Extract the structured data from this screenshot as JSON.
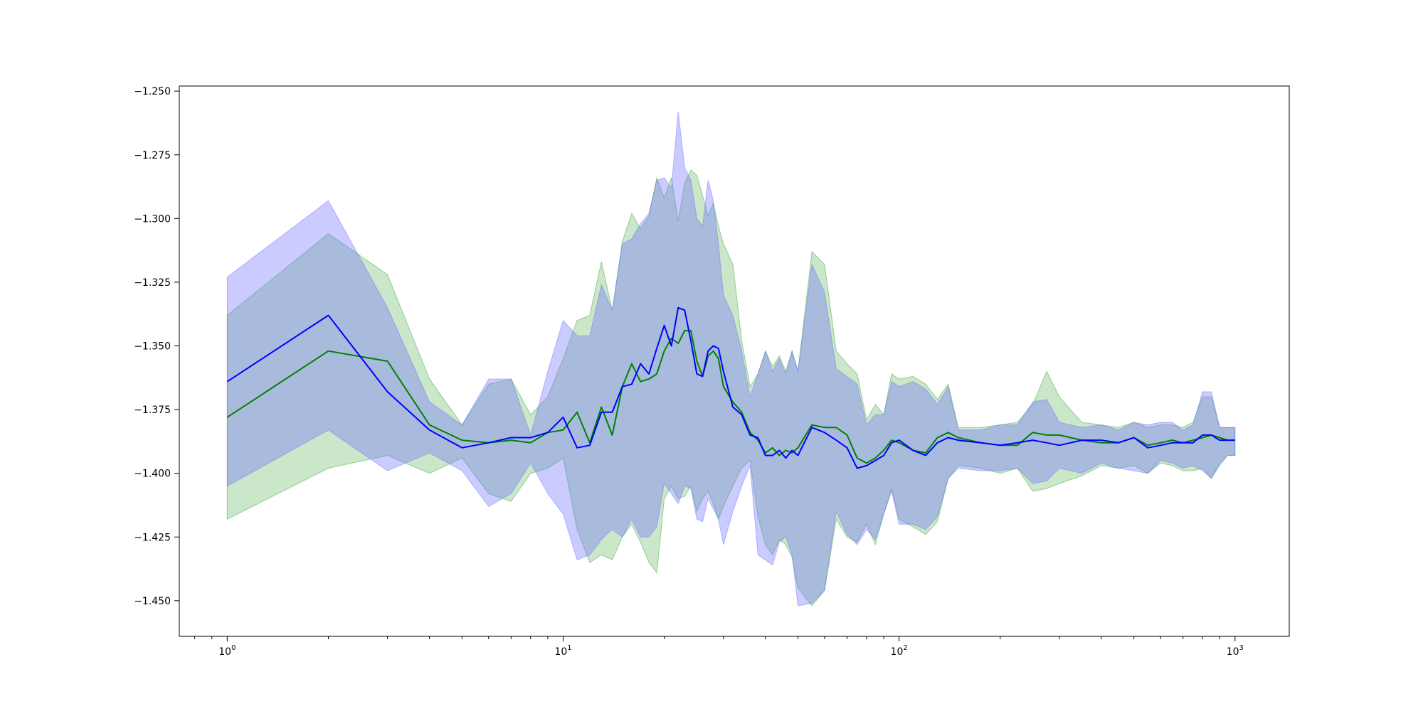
{
  "chart_data": {
    "type": "area",
    "title": "",
    "xlabel": "",
    "ylabel": "",
    "x_scale": "log",
    "xlim": [
      0.72,
      1450
    ],
    "ylim": [
      -1.464,
      -1.248
    ],
    "grid": false,
    "legend": "none",
    "x_ticks": [
      {
        "value": 1,
        "base": "10",
        "exp": "0"
      },
      {
        "value": 10,
        "base": "10",
        "exp": "1"
      },
      {
        "value": 100,
        "base": "10",
        "exp": "2"
      },
      {
        "value": 1000,
        "base": "10",
        "exp": "3"
      }
    ],
    "y_ticks": [
      {
        "value": -1.25,
        "label": "−1.250"
      },
      {
        "value": -1.275,
        "label": "−1.275"
      },
      {
        "value": -1.3,
        "label": "−1.300"
      },
      {
        "value": -1.325,
        "label": "−1.325"
      },
      {
        "value": -1.35,
        "label": "−1.350"
      },
      {
        "value": -1.375,
        "label": "−1.375"
      },
      {
        "value": -1.4,
        "label": "−1.400"
      },
      {
        "value": -1.425,
        "label": "−1.425"
      },
      {
        "value": -1.45,
        "label": "−1.450"
      }
    ],
    "series": [
      {
        "color": "#008000",
        "band_color": "#2ca02c",
        "band_opacity": 0.25,
        "x": [
          1,
          2,
          3,
          4,
          5,
          6,
          7,
          8,
          9,
          10,
          11,
          12,
          13,
          14,
          15,
          16,
          17,
          18,
          19,
          20,
          21,
          22,
          23,
          24,
          25,
          26,
          27,
          28,
          29,
          30,
          32,
          34,
          36,
          38,
          40,
          42,
          44,
          46,
          48,
          50,
          55,
          60,
          65,
          70,
          75,
          80,
          85,
          90,
          95,
          100,
          110,
          120,
          130,
          140,
          150,
          175,
          200,
          225,
          250,
          275,
          300,
          350,
          400,
          450,
          500,
          550,
          600,
          650,
          700,
          750,
          800,
          850,
          900,
          950,
          1000
        ],
        "mean": [
          -1.378,
          -1.352,
          -1.356,
          -1.381,
          -1.387,
          -1.388,
          -1.387,
          -1.388,
          -1.384,
          -1.383,
          -1.376,
          -1.388,
          -1.374,
          -1.385,
          -1.366,
          -1.357,
          -1.364,
          -1.363,
          -1.361,
          -1.352,
          -1.347,
          -1.349,
          -1.344,
          -1.344,
          -1.356,
          -1.362,
          -1.354,
          -1.352,
          -1.355,
          -1.366,
          -1.372,
          -1.376,
          -1.384,
          -1.387,
          -1.392,
          -1.39,
          -1.393,
          -1.391,
          -1.392,
          -1.39,
          -1.381,
          -1.382,
          -1.382,
          -1.385,
          -1.394,
          -1.396,
          -1.394,
          -1.391,
          -1.387,
          -1.388,
          -1.391,
          -1.392,
          -1.386,
          -1.384,
          -1.386,
          -1.388,
          -1.389,
          -1.389,
          -1.384,
          -1.385,
          -1.385,
          -1.387,
          -1.388,
          -1.388,
          -1.386,
          -1.389,
          -1.388,
          -1.387,
          -1.388,
          -1.387,
          -1.386,
          -1.385,
          -1.386,
          -1.387,
          -1.387
        ],
        "lower": [
          -1.418,
          -1.398,
          -1.393,
          -1.4,
          -1.394,
          -1.408,
          -1.411,
          -1.4,
          -1.398,
          -1.394,
          -1.422,
          -1.435,
          -1.432,
          -1.434,
          -1.425,
          -1.42,
          -1.427,
          -1.435,
          -1.439,
          -1.41,
          -1.405,
          -1.41,
          -1.409,
          -1.405,
          -1.415,
          -1.41,
          -1.407,
          -1.412,
          -1.418,
          -1.413,
          -1.405,
          -1.398,
          -1.395,
          -1.417,
          -1.428,
          -1.432,
          -1.426,
          -1.428,
          -1.433,
          -1.445,
          -1.452,
          -1.446,
          -1.418,
          -1.425,
          -1.427,
          -1.42,
          -1.428,
          -1.416,
          -1.406,
          -1.418,
          -1.421,
          -1.424,
          -1.419,
          -1.402,
          -1.397,
          -1.398,
          -1.4,
          -1.398,
          -1.407,
          -1.406,
          -1.404,
          -1.401,
          -1.397,
          -1.398,
          -1.397,
          -1.4,
          -1.396,
          -1.397,
          -1.399,
          -1.399,
          -1.398,
          -1.402,
          -1.396,
          -1.393,
          -1.393
        ],
        "upper": [
          -1.338,
          -1.306,
          -1.322,
          -1.363,
          -1.381,
          -1.365,
          -1.363,
          -1.377,
          -1.37,
          -1.355,
          -1.34,
          -1.338,
          -1.317,
          -1.336,
          -1.309,
          -1.298,
          -1.304,
          -1.299,
          -1.284,
          -1.292,
          -1.284,
          -1.301,
          -1.286,
          -1.281,
          -1.283,
          -1.291,
          -1.299,
          -1.294,
          -1.303,
          -1.31,
          -1.318,
          -1.348,
          -1.366,
          -1.361,
          -1.352,
          -1.358,
          -1.354,
          -1.36,
          -1.352,
          -1.36,
          -1.313,
          -1.318,
          -1.352,
          -1.357,
          -1.361,
          -1.379,
          -1.373,
          -1.377,
          -1.361,
          -1.363,
          -1.362,
          -1.365,
          -1.371,
          -1.365,
          -1.382,
          -1.382,
          -1.381,
          -1.38,
          -1.373,
          -1.36,
          -1.37,
          -1.38,
          -1.381,
          -1.382,
          -1.38,
          -1.382,
          -1.381,
          -1.381,
          -1.382,
          -1.38,
          -1.37,
          -1.37,
          -1.382,
          -1.382,
          -1.382
        ]
      },
      {
        "color": "#0000ff",
        "band_color": "#6a6aff",
        "band_opacity": 0.35,
        "x": [
          1,
          2,
          3,
          4,
          5,
          6,
          7,
          8,
          9,
          10,
          11,
          12,
          13,
          14,
          15,
          16,
          17,
          18,
          19,
          20,
          21,
          22,
          23,
          24,
          25,
          26,
          27,
          28,
          29,
          30,
          32,
          34,
          36,
          38,
          40,
          42,
          44,
          46,
          48,
          50,
          55,
          60,
          65,
          70,
          75,
          80,
          85,
          90,
          95,
          100,
          110,
          120,
          130,
          140,
          150,
          175,
          200,
          225,
          250,
          275,
          300,
          350,
          400,
          450,
          500,
          550,
          600,
          650,
          700,
          750,
          800,
          850,
          900,
          950,
          1000
        ],
        "mean": [
          -1.364,
          -1.338,
          -1.368,
          -1.383,
          -1.39,
          -1.388,
          -1.386,
          -1.386,
          -1.384,
          -1.378,
          -1.39,
          -1.389,
          -1.376,
          -1.376,
          -1.366,
          -1.365,
          -1.357,
          -1.361,
          -1.351,
          -1.342,
          -1.35,
          -1.335,
          -1.336,
          -1.348,
          -1.361,
          -1.362,
          -1.352,
          -1.35,
          -1.351,
          -1.36,
          -1.374,
          -1.377,
          -1.385,
          -1.386,
          -1.393,
          -1.393,
          -1.391,
          -1.394,
          -1.391,
          -1.393,
          -1.382,
          -1.384,
          -1.387,
          -1.39,
          -1.398,
          -1.397,
          -1.395,
          -1.393,
          -1.388,
          -1.387,
          -1.391,
          -1.393,
          -1.388,
          -1.386,
          -1.387,
          -1.388,
          -1.389,
          -1.388,
          -1.387,
          -1.388,
          -1.389,
          -1.387,
          -1.387,
          -1.388,
          -1.386,
          -1.39,
          -1.389,
          -1.388,
          -1.388,
          -1.388,
          -1.385,
          -1.385,
          -1.387,
          -1.387,
          -1.387
        ],
        "lower": [
          -1.405,
          -1.383,
          -1.399,
          -1.392,
          -1.399,
          -1.413,
          -1.408,
          -1.396,
          -1.408,
          -1.416,
          -1.434,
          -1.432,
          -1.426,
          -1.422,
          -1.425,
          -1.418,
          -1.425,
          -1.425,
          -1.421,
          -1.404,
          -1.408,
          -1.412,
          -1.405,
          -1.406,
          -1.418,
          -1.419,
          -1.41,
          -1.414,
          -1.418,
          -1.428,
          -1.415,
          -1.405,
          -1.397,
          -1.432,
          -1.434,
          -1.436,
          -1.427,
          -1.425,
          -1.432,
          -1.452,
          -1.451,
          -1.446,
          -1.415,
          -1.424,
          -1.428,
          -1.422,
          -1.426,
          -1.416,
          -1.407,
          -1.42,
          -1.42,
          -1.422,
          -1.417,
          -1.402,
          -1.398,
          -1.399,
          -1.399,
          -1.398,
          -1.404,
          -1.403,
          -1.398,
          -1.4,
          -1.396,
          -1.398,
          -1.399,
          -1.4,
          -1.395,
          -1.396,
          -1.398,
          -1.397,
          -1.399,
          -1.402,
          -1.397,
          -1.393,
          -1.393
        ],
        "upper": [
          -1.323,
          -1.293,
          -1.335,
          -1.372,
          -1.381,
          -1.363,
          -1.363,
          -1.385,
          -1.36,
          -1.34,
          -1.346,
          -1.346,
          -1.326,
          -1.336,
          -1.31,
          -1.308,
          -1.302,
          -1.298,
          -1.285,
          -1.284,
          -1.288,
          -1.258,
          -1.28,
          -1.285,
          -1.3,
          -1.303,
          -1.285,
          -1.293,
          -1.31,
          -1.33,
          -1.338,
          -1.352,
          -1.37,
          -1.361,
          -1.352,
          -1.36,
          -1.355,
          -1.361,
          -1.352,
          -1.36,
          -1.318,
          -1.329,
          -1.359,
          -1.362,
          -1.365,
          -1.381,
          -1.377,
          -1.377,
          -1.364,
          -1.366,
          -1.364,
          -1.367,
          -1.373,
          -1.366,
          -1.383,
          -1.383,
          -1.381,
          -1.381,
          -1.372,
          -1.371,
          -1.38,
          -1.382,
          -1.381,
          -1.383,
          -1.38,
          -1.381,
          -1.38,
          -1.38,
          -1.383,
          -1.381,
          -1.368,
          -1.368,
          -1.382,
          -1.382,
          -1.382
        ]
      }
    ]
  }
}
